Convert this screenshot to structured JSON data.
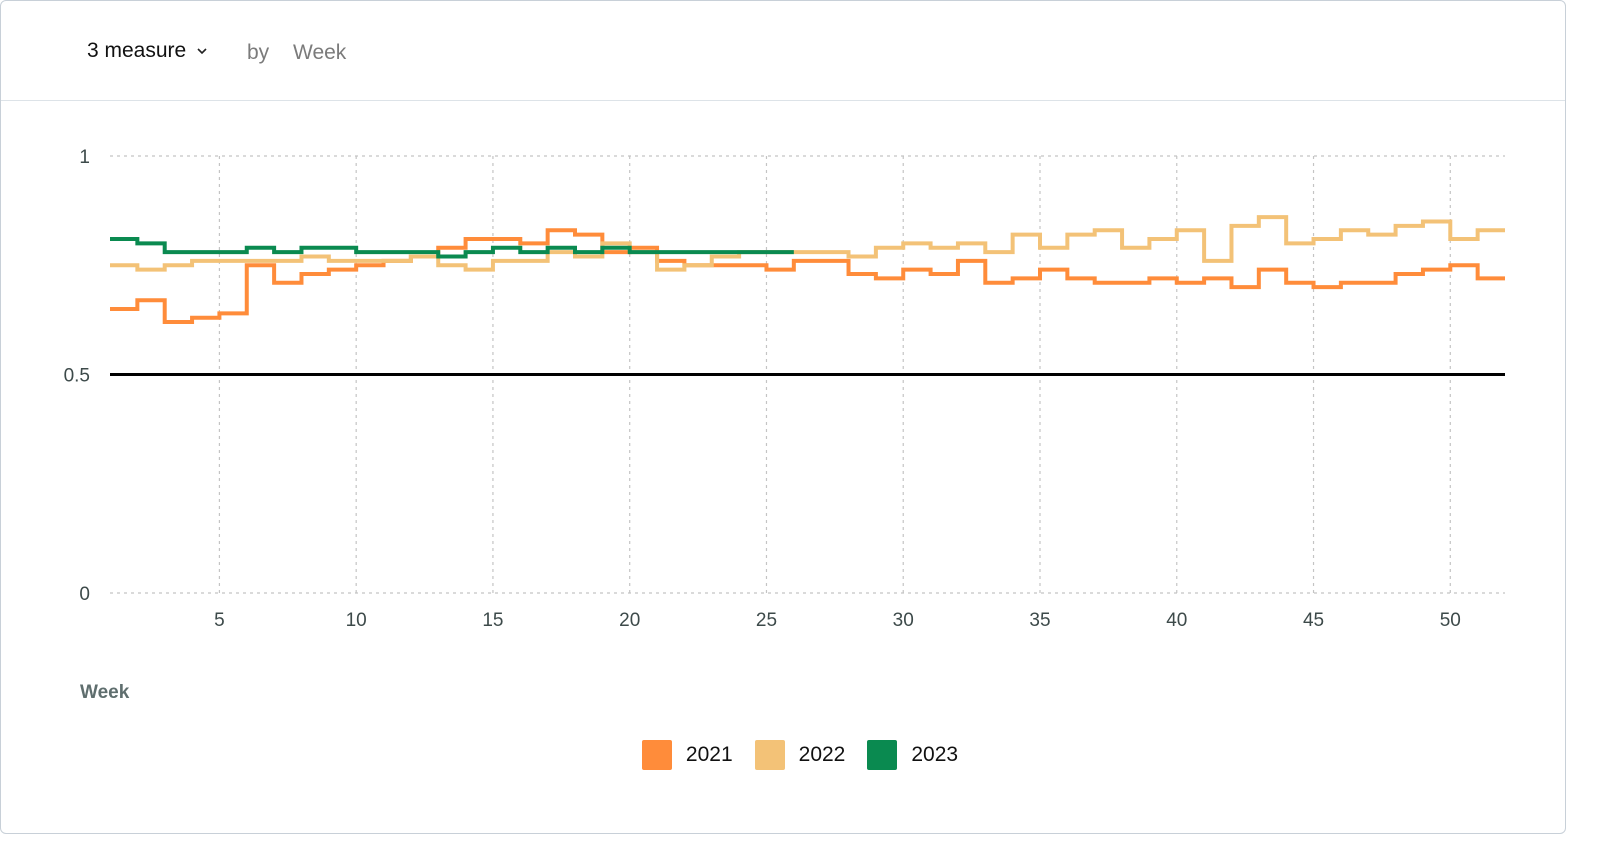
{
  "toolbar": {
    "measure_label": "3 measure",
    "by_label": "by",
    "dimension_label": "Week"
  },
  "chart_data": {
    "type": "line",
    "interpolation": "step",
    "title": "",
    "xlabel": "Week",
    "ylabel": "",
    "xlim": [
      1,
      52
    ],
    "ylim": [
      0,
      1
    ],
    "x_ticks": [
      5,
      10,
      15,
      20,
      25,
      30,
      35,
      40,
      45,
      50
    ],
    "y_ticks": [
      0,
      0.5,
      1
    ],
    "y_tick_labels": [
      "0",
      "0.5",
      "1"
    ],
    "grid": true,
    "legend_position": "bottom",
    "reference_line": {
      "y": 0.5,
      "color": "#000000"
    },
    "series": [
      {
        "name": "2021",
        "color": "#ff8c3a",
        "x": [
          1,
          2,
          3,
          4,
          5,
          6,
          7,
          8,
          9,
          10,
          11,
          12,
          13,
          14,
          15,
          16,
          17,
          18,
          19,
          20,
          21,
          22,
          23,
          24,
          25,
          26,
          27,
          28,
          29,
          30,
          31,
          32,
          33,
          34,
          35,
          36,
          37,
          38,
          39,
          40,
          41,
          42,
          43,
          44,
          45,
          46,
          47,
          48,
          49,
          50,
          51,
          52
        ],
        "values": [
          0.65,
          0.67,
          0.62,
          0.63,
          0.64,
          0.75,
          0.71,
          0.73,
          0.74,
          0.75,
          0.76,
          0.77,
          0.79,
          0.81,
          0.81,
          0.8,
          0.83,
          0.82,
          0.78,
          0.79,
          0.76,
          0.75,
          0.75,
          0.75,
          0.74,
          0.76,
          0.76,
          0.73,
          0.72,
          0.74,
          0.73,
          0.76,
          0.71,
          0.72,
          0.74,
          0.72,
          0.71,
          0.71,
          0.72,
          0.71,
          0.72,
          0.7,
          0.74,
          0.71,
          0.7,
          0.71,
          0.71,
          0.73,
          0.74,
          0.75,
          0.72,
          0.72
        ]
      },
      {
        "name": "2022",
        "color": "#f3c277",
        "x": [
          1,
          2,
          3,
          4,
          5,
          6,
          7,
          8,
          9,
          10,
          11,
          12,
          13,
          14,
          15,
          16,
          17,
          18,
          19,
          20,
          21,
          22,
          23,
          24,
          25,
          26,
          27,
          28,
          29,
          30,
          31,
          32,
          33,
          34,
          35,
          36,
          37,
          38,
          39,
          40,
          41,
          42,
          43,
          44,
          45,
          46,
          47,
          48,
          49,
          50,
          51,
          52
        ],
        "values": [
          0.75,
          0.74,
          0.75,
          0.76,
          0.76,
          0.76,
          0.76,
          0.77,
          0.76,
          0.76,
          0.76,
          0.77,
          0.75,
          0.74,
          0.76,
          0.76,
          0.78,
          0.77,
          0.8,
          0.78,
          0.74,
          0.75,
          0.77,
          0.78,
          0.78,
          0.78,
          0.78,
          0.77,
          0.79,
          0.8,
          0.79,
          0.8,
          0.78,
          0.82,
          0.79,
          0.82,
          0.83,
          0.79,
          0.81,
          0.83,
          0.76,
          0.84,
          0.86,
          0.8,
          0.81,
          0.83,
          0.82,
          0.84,
          0.85,
          0.81,
          0.83,
          0.83
        ]
      },
      {
        "name": "2023",
        "color": "#0a8a50",
        "x": [
          1,
          2,
          3,
          4,
          5,
          6,
          7,
          8,
          9,
          10,
          11,
          12,
          13,
          14,
          15,
          16,
          17,
          18,
          19,
          20,
          21,
          22,
          23,
          24,
          25
        ],
        "values": [
          0.81,
          0.8,
          0.78,
          0.78,
          0.78,
          0.79,
          0.78,
          0.79,
          0.79,
          0.78,
          0.78,
          0.78,
          0.77,
          0.78,
          0.79,
          0.78,
          0.79,
          0.78,
          0.79,
          0.78,
          0.78,
          0.78,
          0.78,
          0.78,
          0.78
        ]
      }
    ]
  }
}
